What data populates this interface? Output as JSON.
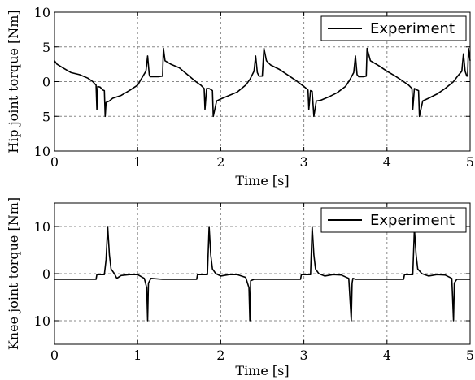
{
  "chart_data": [
    {
      "type": "line",
      "xlabel": "Time [s]",
      "ylabel": "Hip joint torque [Nm]",
      "xlim": [
        0,
        5
      ],
      "ylim": [
        -10,
        10
      ],
      "xticks": [
        0,
        1,
        2,
        3,
        4,
        5
      ],
      "yticks": [
        -10,
        -5,
        0,
        5,
        10
      ],
      "ytick_labels": [
        "10",
        "5",
        "0",
        "5",
        "10"
      ],
      "grid": true,
      "legend": "top-right",
      "series": [
        {
          "name": "Experiment",
          "color": "#000000",
          "x": [
            0.0,
            0.03,
            0.1,
            0.2,
            0.3,
            0.4,
            0.46,
            0.5,
            0.51,
            0.52,
            0.55,
            0.58,
            0.6,
            0.61,
            0.62,
            0.66,
            0.7,
            0.8,
            0.9,
            1.0,
            1.05,
            1.1,
            1.12,
            1.14,
            1.15,
            1.18,
            1.25,
            1.3,
            1.31,
            1.33,
            1.4,
            1.5,
            1.6,
            1.7,
            1.76,
            1.8,
            1.81,
            1.83,
            1.86,
            1.9,
            1.91,
            1.95,
            2.0,
            2.1,
            2.2,
            2.3,
            2.35,
            2.4,
            2.42,
            2.44,
            2.46,
            2.5,
            2.52,
            2.55,
            2.6,
            2.7,
            2.8,
            2.9,
            3.0,
            3.03,
            3.05,
            3.06,
            3.08,
            3.1,
            3.12,
            3.15,
            3.2,
            3.3,
            3.4,
            3.5,
            3.55,
            3.6,
            3.62,
            3.64,
            3.66,
            3.72,
            3.75,
            3.76,
            3.8,
            3.9,
            4.0,
            4.1,
            4.2,
            4.26,
            4.3,
            4.31,
            4.33,
            4.36,
            4.38,
            4.39,
            4.43,
            4.5,
            4.6,
            4.7,
            4.8,
            4.85,
            4.9,
            4.92,
            4.94,
            4.96,
            4.97,
            4.98,
            5.0
          ],
          "y": [
            3.0,
            2.5,
            2.0,
            1.3,
            1.0,
            0.5,
            0.0,
            -0.5,
            -4.0,
            -0.7,
            -0.8,
            -1.2,
            -1.3,
            -5.0,
            -3.0,
            -2.8,
            -2.4,
            -2.0,
            -1.3,
            -0.5,
            0.5,
            1.5,
            3.7,
            1.0,
            0.7,
            0.7,
            0.7,
            0.8,
            4.8,
            3.0,
            2.5,
            2.0,
            1.0,
            0.0,
            -0.5,
            -1.0,
            -4.0,
            -1.0,
            -1.0,
            -1.3,
            -5.0,
            -2.8,
            -2.5,
            -2.0,
            -1.5,
            -0.5,
            0.3,
            1.5,
            3.7,
            1.3,
            0.8,
            0.8,
            4.8,
            3.0,
            2.4,
            1.8,
            1.0,
            0.2,
            -0.7,
            -1.0,
            -1.2,
            -4.0,
            -1.3,
            -1.4,
            -5.0,
            -2.8,
            -2.7,
            -2.2,
            -1.6,
            -0.7,
            0.2,
            1.3,
            3.7,
            1.0,
            0.7,
            0.7,
            0.8,
            4.8,
            3.0,
            2.3,
            1.5,
            0.8,
            0.0,
            -0.5,
            -1.0,
            -4.0,
            -1.0,
            -1.2,
            -1.3,
            -5.0,
            -2.8,
            -2.4,
            -1.8,
            -1.0,
            0.0,
            0.8,
            1.5,
            4.0,
            1.5,
            0.8,
            0.8,
            4.8,
            3.0
          ]
        }
      ]
    },
    {
      "type": "line",
      "xlabel": "Time [s]",
      "ylabel": "Knee joint torque [Nm]",
      "xlim": [
        0,
        5
      ],
      "ylim": [
        -15,
        15
      ],
      "xticks": [
        0,
        1,
        2,
        3,
        4,
        5
      ],
      "yticks": [
        -10,
        0,
        10
      ],
      "ytick_labels": [
        "10",
        "0",
        "10"
      ],
      "grid": true,
      "legend": "top-right",
      "series": [
        {
          "name": "Experiment",
          "color": "#000000",
          "x": [
            0.0,
            0.5,
            0.51,
            0.6,
            0.62,
            0.64,
            0.66,
            0.68,
            0.72,
            0.75,
            0.8,
            0.9,
            1.0,
            1.08,
            1.11,
            1.12,
            1.13,
            1.16,
            1.3,
            1.5,
            1.71,
            1.72,
            1.84,
            1.86,
            1.88,
            1.9,
            1.94,
            2.0,
            2.1,
            2.2,
            2.3,
            2.34,
            2.35,
            2.36,
            2.4,
            2.6,
            2.8,
            2.96,
            2.97,
            3.08,
            3.1,
            3.12,
            3.14,
            3.18,
            3.25,
            3.35,
            3.45,
            3.54,
            3.57,
            3.58,
            3.59,
            3.62,
            3.8,
            4.0,
            4.2,
            4.21,
            4.31,
            4.33,
            4.35,
            4.37,
            4.42,
            4.5,
            4.6,
            4.7,
            4.78,
            4.8,
            4.81,
            4.84,
            5.0
          ],
          "y": [
            -1.2,
            -1.2,
            -0.2,
            -0.2,
            3.0,
            10.0,
            4.0,
            1.0,
            0.0,
            -1.0,
            -0.4,
            -0.2,
            -0.2,
            -1.0,
            -3.0,
            -10.0,
            -2.0,
            -1.0,
            -1.2,
            -1.2,
            -1.2,
            -0.2,
            -0.2,
            10.0,
            4.0,
            1.0,
            0.0,
            -0.5,
            -0.2,
            -0.2,
            -0.8,
            -3.0,
            -10.0,
            -1.5,
            -1.2,
            -1.2,
            -1.2,
            -1.2,
            -0.2,
            -0.2,
            10.0,
            4.0,
            1.0,
            0.0,
            -0.5,
            -0.2,
            -0.3,
            -1.0,
            -10.0,
            -2.0,
            -1.0,
            -1.2,
            -1.2,
            -1.2,
            -1.2,
            -0.2,
            -0.2,
            9.5,
            4.0,
            1.0,
            0.0,
            -0.5,
            -0.2,
            -0.3,
            -1.0,
            -10.0,
            -2.0,
            -1.2,
            -1.2
          ]
        }
      ]
    }
  ]
}
